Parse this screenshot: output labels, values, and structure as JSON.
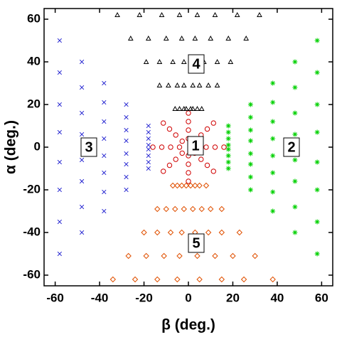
{
  "chart_data": {
    "type": "scatter",
    "x_label": "β (deg.)",
    "y_label": "α (deg.)",
    "xlim": [
      -65,
      65
    ],
    "ylim": [
      -65,
      65
    ],
    "xticks": [
      -60,
      -40,
      -20,
      0,
      20,
      40,
      60
    ],
    "yticks": [
      -60,
      -40,
      -20,
      0,
      20,
      40,
      60
    ],
    "annotations": [
      "1",
      "2",
      "3",
      "4",
      "5"
    ],
    "series": [
      {
        "color": "#d00000",
        "marker": "circle",
        "x": [
          4,
          2.8,
          0,
          -2.8,
          -4,
          -2.8,
          0,
          2.8,
          8,
          5.7,
          0,
          -5.7,
          -8,
          -5.7,
          0,
          5.7,
          12,
          8.5,
          0,
          -8.5,
          -12,
          -8.5,
          0,
          8.5,
          16,
          11.3,
          0,
          -11.3,
          -16,
          -11.3,
          0,
          11.3
        ],
        "y": [
          0,
          2.8,
          4,
          2.8,
          0,
          -2.8,
          -4,
          -2.8,
          0,
          5.7,
          8,
          5.7,
          0,
          -5.7,
          -8,
          -5.7,
          0,
          8.5,
          12,
          8.5,
          0,
          -8.5,
          -12,
          -8.5,
          0,
          11.3,
          16,
          11.3,
          0,
          -11.3,
          -16,
          -11.3
        ]
      },
      {
        "color": "#00d000",
        "marker": "star",
        "x": [
          18,
          28,
          38,
          48,
          58,
          18,
          28,
          38,
          48,
          58,
          18,
          28,
          38,
          48,
          58,
          18,
          28,
          38,
          48,
          58,
          18,
          28,
          38,
          48,
          58,
          18,
          28,
          38,
          48,
          58,
          18,
          28,
          38,
          48,
          58,
          18,
          28,
          38,
          48,
          58
        ],
        "y": [
          -10,
          -20,
          -30,
          -40,
          -50,
          -7,
          -14,
          -21,
          -28,
          -35,
          -4,
          -8,
          -12,
          -16,
          -20,
          -1,
          -3,
          -4,
          -6,
          -7,
          1,
          3,
          4,
          6,
          7,
          4,
          8,
          12,
          16,
          20,
          7,
          14,
          21,
          28,
          35,
          10,
          20,
          30,
          40,
          50
        ]
      },
      {
        "color": "#2020d0",
        "marker": "x",
        "x": [
          -18,
          -28,
          -38,
          -48,
          -58,
          -18,
          -28,
          -38,
          -48,
          -58,
          -18,
          -28,
          -38,
          -48,
          -58,
          -18,
          -28,
          -38,
          -48,
          -58,
          -18,
          -28,
          -38,
          -48,
          -58,
          -18,
          -28,
          -38,
          -48,
          -58,
          -18,
          -28,
          -38,
          -48,
          -58,
          -18,
          -28,
          -38,
          -48,
          -58
        ],
        "y": [
          -10,
          -20,
          -30,
          -40,
          -50,
          -7,
          -14,
          -21,
          -28,
          -35,
          -4,
          -8,
          -12,
          -16,
          -20,
          -1,
          -3,
          -4,
          -6,
          -7,
          1,
          3,
          4,
          6,
          7,
          4,
          8,
          12,
          16,
          20,
          7,
          14,
          21,
          28,
          35,
          10,
          20,
          30,
          40,
          50
        ]
      },
      {
        "color": "#000000",
        "marker": "triangle",
        "x": [
          -6,
          -13,
          -19,
          -26,
          -32,
          -4,
          -9,
          -13,
          -18,
          -22,
          -2,
          -5,
          -7,
          -10,
          -12,
          -1,
          -2,
          -2,
          -3,
          -4,
          1,
          2,
          2,
          3,
          4,
          2,
          5,
          7,
          10,
          12,
          4,
          9,
          13,
          18,
          22,
          6,
          13,
          19,
          26,
          32
        ],
        "y": [
          18,
          29,
          40,
          51,
          62,
          18,
          29,
          40,
          51,
          62,
          18,
          29,
          40,
          51,
          62,
          18,
          29,
          40,
          51,
          62,
          18,
          29,
          40,
          51,
          62,
          18,
          29,
          40,
          51,
          62,
          18,
          29,
          40,
          51,
          62,
          18,
          29,
          40,
          51,
          62
        ]
      },
      {
        "color": "#e05000",
        "marker": "diamond",
        "x": [
          -7,
          -14,
          -20,
          -27,
          -34,
          -5,
          -10,
          -14,
          -19,
          -24,
          -3,
          -6,
          -8,
          -11,
          -14,
          -1,
          -2,
          -3,
          -4,
          -5,
          1,
          2,
          3,
          4,
          5,
          3,
          6,
          9,
          12,
          15,
          5,
          10,
          15,
          20,
          25,
          8,
          15,
          23,
          30,
          38
        ],
        "y": [
          -18,
          -29,
          -40,
          -51,
          -62,
          -18,
          -29,
          -40,
          -51,
          -62,
          -18,
          -29,
          -40,
          -51,
          -62,
          -18,
          -29,
          -40,
          -51,
          -62,
          -18,
          -29,
          -40,
          -51,
          -62,
          -18,
          -29,
          -40,
          -51,
          -62,
          -18,
          -29,
          -40,
          -51,
          -62,
          -18,
          -29,
          -40,
          -51,
          -62
        ]
      }
    ]
  }
}
